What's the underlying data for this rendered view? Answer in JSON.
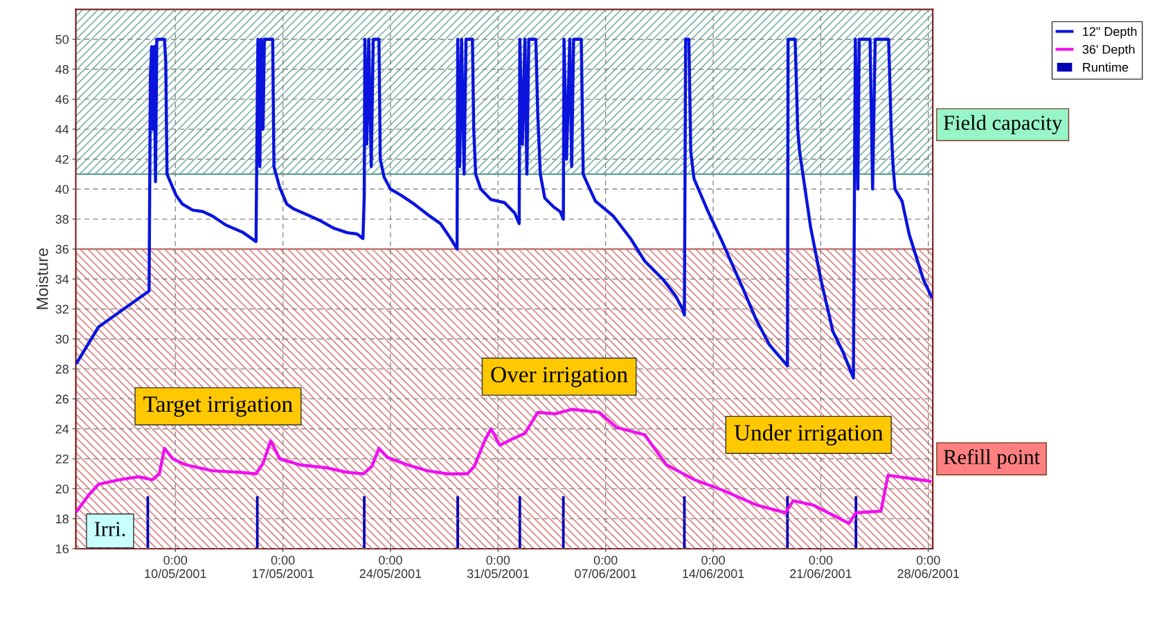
{
  "chart_data": {
    "type": "line",
    "ylabel": "Moisture",
    "xlim": [
      "2001-05-03T12:30",
      "2001-06-28T07:00"
    ],
    "ylim": [
      16,
      52
    ],
    "xticks": [
      {
        "value": "2001-05-10",
        "label": "0:00\n10/05/2001"
      },
      {
        "value": "2001-05-17",
        "label": "0:00\n17/05/2001"
      },
      {
        "value": "2001-05-24",
        "label": "0:00\n24/05/2001"
      },
      {
        "value": "2001-05-31",
        "label": "0:00\n31/05/2001"
      },
      {
        "value": "2001-06-07",
        "label": "0:00\n07/06/2001"
      },
      {
        "value": "2001-06-14",
        "label": "0:00\n14/06/2001"
      },
      {
        "value": "2001-06-21",
        "label": "0:00\n21/06/2001"
      },
      {
        "value": "2001-06-28",
        "label": "0:00\n28/06/2001"
      }
    ],
    "yticks": [
      16,
      18,
      20,
      22,
      24,
      26,
      28,
      30,
      32,
      34,
      36,
      38,
      40,
      42,
      44,
      46,
      48,
      50
    ],
    "grid": true,
    "legend": "top right",
    "marker": "none",
    "line_style": "solid",
    "bands": [
      {
        "axis": "y",
        "from": 41,
        "to": 52,
        "label": "Field capacity",
        "color": "#5a9e90"
      },
      {
        "axis": "y",
        "from": 16,
        "to": 36,
        "label": "Refill point",
        "color": "#d06060"
      }
    ],
    "annotations": [
      "Target irrigation",
      "Over irrigation",
      "Under irrigation",
      "Irri."
    ],
    "series": [
      {
        "name": "12\" Depth",
        "color": "#0a14dc",
        "x": [
          "2001-05-03T14:00",
          "2001-05-05T00:00",
          "2001-05-08T07:00",
          "2001-05-08T09:00",
          "2001-05-08T11:00",
          "2001-05-08T13:00",
          "2001-05-08T15:00",
          "2001-05-08T17:00",
          "2001-05-08T19:00",
          "2001-05-09T07:00",
          "2001-05-09T09:00",
          "2001-05-09T11:00",
          "2001-05-10T01:00",
          "2001-05-10T11:00",
          "2001-05-11T03:00",
          "2001-05-11T19:00",
          "2001-05-12T10:00",
          "2001-05-13T07:00",
          "2001-05-14T10:00",
          "2001-05-14T20:00",
          "2001-05-15T06:00",
          "2001-05-15T08:00",
          "2001-05-15T09:00",
          "2001-05-15T12:00",
          "2001-05-15T14:00",
          "2001-05-15T17:00",
          "2001-05-15T19:00",
          "2001-05-16T08:00",
          "2001-05-16T10:00",
          "2001-05-16T19:00",
          "2001-05-17T06:00",
          "2001-05-17T16:00",
          "2001-05-18T13:00",
          "2001-05-19T10:00",
          "2001-05-20T07:00",
          "2001-05-21T04:00",
          "2001-05-21T20:00",
          "2001-05-22T05:00",
          "2001-05-22T07:00",
          "2001-05-22T08:00",
          "2001-05-22T11:00",
          "2001-05-22T14:00",
          "2001-05-22T18:00",
          "2001-05-22T21:00",
          "2001-05-23T06:00",
          "2001-05-23T08:00",
          "2001-05-23T14:00",
          "2001-05-24T00:00",
          "2001-05-24T16:00",
          "2001-05-25T13:00",
          "2001-05-26T10:00",
          "2001-05-27T06:00",
          "2001-05-27T22:00",
          "2001-05-28T08:00",
          "2001-05-28T09:00",
          "2001-05-28T12:00",
          "2001-05-28T15:00",
          "2001-05-28T19:00",
          "2001-05-28T22:00",
          "2001-05-29T08:00",
          "2001-05-29T10:00",
          "2001-05-29T13:00",
          "2001-05-29T21:00",
          "2001-05-30T13:00",
          "2001-05-31T10:00",
          "2001-06-01T02:00",
          "2001-06-01T09:00",
          "2001-06-01T10:00",
          "2001-06-01T14:00",
          "2001-06-01T18:00",
          "2001-06-01T21:00",
          "2001-06-02T00:00",
          "2001-06-02T11:00",
          "2001-06-02T14:00",
          "2001-06-02T18:00",
          "2001-06-03T01:00",
          "2001-06-03T15:00",
          "2001-06-04T01:00",
          "2001-06-04T06:00",
          "2001-06-04T07:00",
          "2001-06-04T11:00",
          "2001-06-04T16:00",
          "2001-06-04T19:00",
          "2001-06-04T22:00",
          "2001-06-05T10:00",
          "2001-06-05T13:00",
          "2001-06-05T16:00",
          "2001-06-06T08:00",
          "2001-06-07T12:00",
          "2001-06-08T15:00",
          "2001-06-09T13:00",
          "2001-06-10T17:00",
          "2001-06-11T13:00",
          "2001-06-12T00:00",
          "2001-06-12T03:00",
          "2001-06-12T05:00",
          "2001-06-12T10:00",
          "2001-06-12T13:00",
          "2001-06-12T18:00",
          "2001-06-13T16:00",
          "2001-06-14T14:00",
          "2001-06-15T22:00",
          "2001-06-16T19:00",
          "2001-06-17T16:00",
          "2001-06-18T18:00",
          "2001-06-18T20:00",
          "2001-06-18T21:00",
          "2001-06-19T08:00",
          "2001-06-19T12:00",
          "2001-06-19T15:00",
          "2001-06-20T08:00",
          "2001-06-21T00:00",
          "2001-06-21T19:00",
          "2001-06-22T11:00",
          "2001-06-23T03:00",
          "2001-06-23T06:00",
          "2001-06-23T10:00",
          "2001-06-23T12:00",
          "2001-06-24T05:00",
          "2001-06-24T09:00",
          "2001-06-24T13:00",
          "2001-06-25T10:00",
          "2001-06-25T14:00",
          "2001-06-25T17:00",
          "2001-06-25T20:00",
          "2001-06-26T07:00",
          "2001-06-26T18:00",
          "2001-06-27T05:00",
          "2001-06-27T16:00",
          "2001-06-28T05:00"
        ],
        "values": [
          28.4,
          30.8,
          33.2,
          47.5,
          49.5,
          44,
          49.5,
          40.5,
          50,
          50,
          48.5,
          41,
          39.6,
          39.0,
          38.6,
          38.5,
          38.2,
          37.6,
          37.1,
          36.8,
          36.5,
          46,
          50,
          41.5,
          50,
          44,
          50,
          50,
          41.5,
          40.1,
          39.0,
          38.7,
          38.3,
          37.9,
          37.4,
          37.1,
          37.0,
          36.7,
          39.5,
          50,
          43,
          50,
          41.5,
          50,
          50,
          42,
          40.8,
          40.0,
          39.6,
          39.0,
          38.3,
          37.7,
          36.7,
          36.0,
          50,
          41.5,
          50,
          41,
          50,
          50,
          44,
          41,
          40.0,
          39.3,
          39.1,
          38.4,
          37.7,
          50,
          43,
          50,
          41,
          50,
          50,
          45,
          41,
          39.4,
          38.8,
          38.5,
          38.0,
          50,
          42,
          50,
          41.5,
          50,
          50,
          41,
          40.7,
          39.2,
          38.2,
          36.7,
          35.2,
          34.0,
          32.9,
          32.0,
          31.6,
          50,
          50,
          42.5,
          40.7,
          38.5,
          36.5,
          33.4,
          31.3,
          29.6,
          28.3,
          28.2,
          50,
          50,
          44,
          42.5,
          37.5,
          34.0,
          30.5,
          29.1,
          27.4,
          50,
          40,
          50,
          50,
          40,
          50,
          50,
          44,
          41.5,
          40.0,
          39.2,
          37.0,
          35.5,
          34.0,
          32.8
        ]
      },
      {
        "name": "36' Depth",
        "color": "#ee11ee",
        "x": [
          "2001-05-03T14:00",
          "2001-05-04T09:00",
          "2001-05-05T00:00",
          "2001-05-06T08:00",
          "2001-05-07T15:00",
          "2001-05-08T12:00",
          "2001-05-08T23:00",
          "2001-05-09T07:00",
          "2001-05-09T20:00",
          "2001-05-10T16:00",
          "2001-05-12T10:00",
          "2001-05-14T04:00",
          "2001-05-15T06:00",
          "2001-05-15T17:00",
          "2001-05-16T05:00",
          "2001-05-16T19:00",
          "2001-05-18T02:00",
          "2001-05-19T20:00",
          "2001-05-21T04:00",
          "2001-05-22T06:00",
          "2001-05-22T19:00",
          "2001-05-23T06:00",
          "2001-05-23T19:00",
          "2001-05-25T02:00",
          "2001-05-26T10:00",
          "2001-05-27T17:00",
          "2001-05-29T00:00",
          "2001-05-29T11:00",
          "2001-05-30T03:00",
          "2001-05-30T13:00",
          "2001-05-31T03:00",
          "2001-05-31T21:00",
          "2001-06-01T18:00",
          "2001-06-02T14:00",
          "2001-06-03T17:00",
          "2001-06-04T19:00",
          "2001-06-06T14:00",
          "2001-06-07T17:00",
          "2001-06-09T13:00",
          "2001-06-10T23:00",
          "2001-06-12T19:00",
          "2001-06-14T15:00",
          "2001-06-16T21:00",
          "2001-06-18T17:00",
          "2001-06-19T05:00",
          "2001-06-20T13:00",
          "2001-06-22T20:00",
          "2001-06-23T07:00",
          "2001-06-24T22:00",
          "2001-06-25T09:00",
          "2001-06-28T03:00"
        ],
        "values": [
          18.5,
          19.6,
          20.3,
          20.6,
          20.8,
          20.6,
          21.0,
          22.7,
          22.0,
          21.6,
          21.2,
          21.1,
          21.0,
          21.7,
          23.2,
          22.0,
          21.6,
          21.4,
          21.1,
          21.0,
          21.5,
          22.7,
          22.1,
          21.6,
          21.2,
          21.0,
          21.0,
          21.5,
          23.2,
          24.0,
          22.9,
          23.3,
          23.7,
          25.1,
          25.0,
          25.3,
          25.1,
          24.1,
          23.6,
          21.6,
          20.6,
          19.9,
          18.9,
          18.4,
          19.2,
          18.9,
          17.7,
          18.4,
          18.5,
          20.9,
          20.5
        ]
      },
      {
        "name": "Runtime",
        "type": "bar",
        "color": "#0000b4",
        "x": [
          "2001-05-08T05:00",
          "2001-05-15T08:00",
          "2001-05-22T07:00",
          "2001-05-28T09:00",
          "2001-06-01T10:00",
          "2001-06-04T06:00",
          "2001-06-12T03:00",
          "2001-06-18T20:00",
          "2001-06-23T07:00"
        ],
        "base": [
          16,
          16,
          16,
          16,
          16,
          16,
          16,
          16,
          16
        ],
        "values": [
          3.5,
          3.5,
          3.5,
          3.5,
          3.5,
          3.5,
          3.5,
          3.5,
          3.5
        ]
      }
    ]
  }
}
